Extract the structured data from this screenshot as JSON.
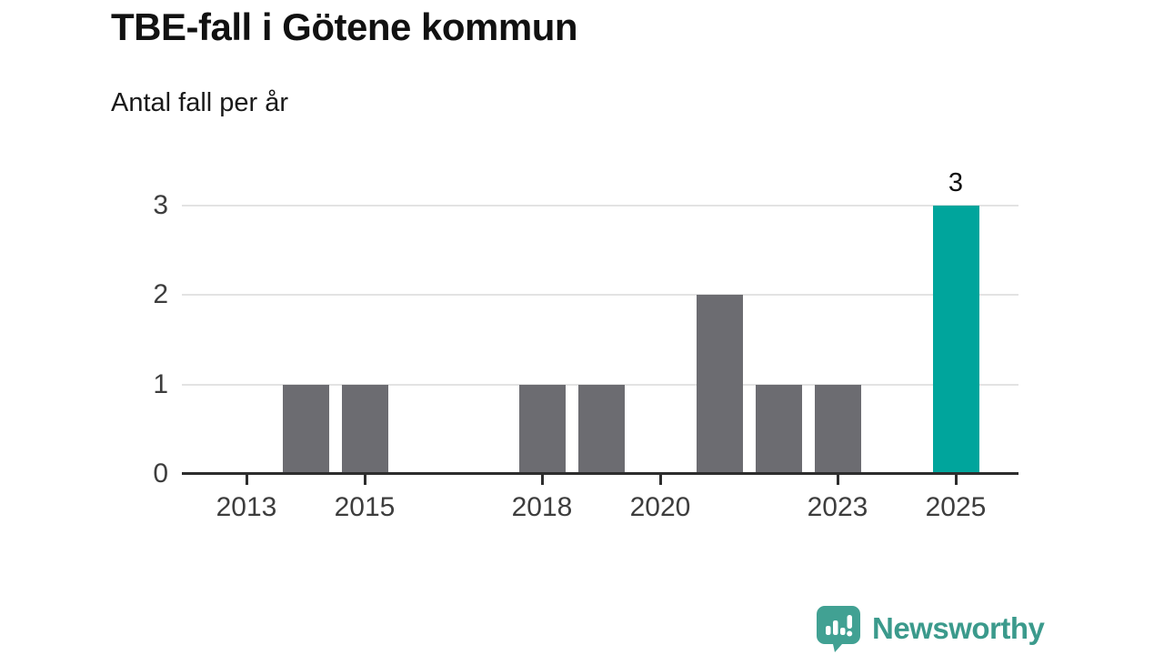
{
  "header": {
    "title": "TBE-fall i Götene kommun",
    "subtitle": "Antal fall per år"
  },
  "chart_data": {
    "type": "bar",
    "title": "TBE-fall i Götene kommun",
    "subtitle": "Antal fall per år",
    "categories": [
      "2013",
      "2014",
      "2015",
      "2016",
      "2017",
      "2018",
      "2019",
      "2020",
      "2021",
      "2022",
      "2023",
      "2024",
      "2025"
    ],
    "values": [
      0,
      1,
      1,
      0,
      0,
      1,
      1,
      0,
      2,
      1,
      1,
      0,
      3
    ],
    "highlight_category": "2025",
    "value_labels": [
      {
        "category": "2025",
        "label": "3"
      }
    ],
    "x_tick_labels": [
      "2013",
      "2015",
      "2018",
      "2020",
      "2023",
      "2025"
    ],
    "y_ticks": [
      "0",
      "1",
      "2",
      "3"
    ],
    "ylim": [
      0,
      3
    ],
    "xlabel": "",
    "ylabel": "",
    "grid": "horizontal",
    "legend": "none",
    "colors": {
      "bar": "#6C6C71",
      "highlight": "#00A59C",
      "gridline": "#E3E3E3",
      "axis": "#2D2D2D",
      "tick_text": "#3D3D3D"
    }
  },
  "footer": {
    "brand_name": "Newsworthy",
    "logo_icon": "speech-bubble-bar-chart-icon",
    "brand_text_color": "#3B9A8C",
    "logo_bg_color": "#41A193",
    "logo_glyph_color": "#FFFFFF"
  }
}
